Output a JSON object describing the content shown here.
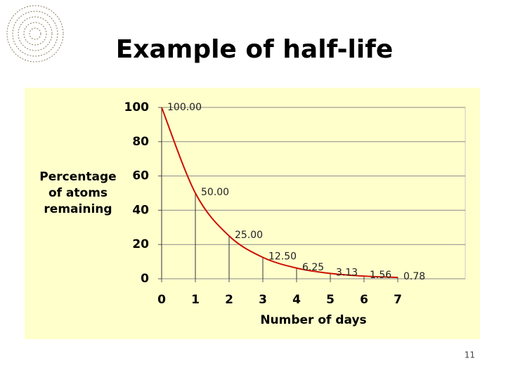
{
  "slide_number": "11",
  "chart_data": {
    "type": "line",
    "title": "Example  of half-life",
    "xlabel": "Number of days",
    "ylabel": [
      "Percentage",
      "of atoms",
      "remaining"
    ],
    "x": [
      0,
      1,
      2,
      3,
      4,
      5,
      6,
      7
    ],
    "values": [
      100,
      50,
      25,
      12.5,
      6.25,
      3.125,
      1.5625,
      0.78125
    ],
    "value_labels": [
      "100.00",
      "50.00",
      "25.00",
      "12.50",
      "6.25",
      "3.13",
      "1.56",
      "0.78"
    ],
    "color": "#cc1100",
    "xlim": [
      0,
      9
    ],
    "xticks": [
      0,
      1,
      2,
      3,
      4,
      5,
      6,
      7
    ],
    "ylim": [
      0,
      100
    ],
    "yticks": [
      0,
      20,
      40,
      60,
      80,
      100
    ],
    "grid": true,
    "drop_lines": true
  }
}
